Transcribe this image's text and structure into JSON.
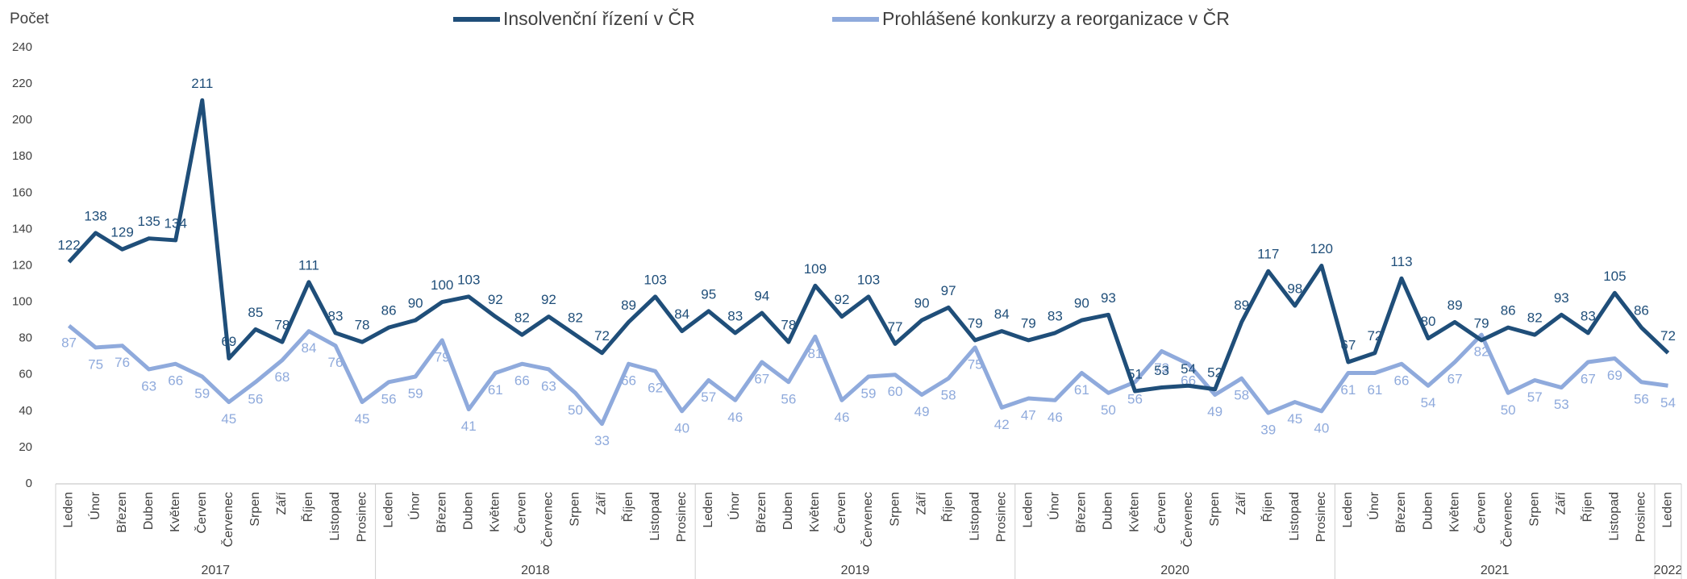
{
  "chart_data": {
    "type": "line",
    "y_label": "Počet",
    "ylim": [
      0,
      240
    ],
    "yticks": [
      0,
      20,
      40,
      60,
      80,
      100,
      120,
      140,
      160,
      180,
      200,
      220,
      240
    ],
    "categories": [
      {
        "month": "Leden",
        "year": "2017"
      },
      {
        "month": "Únor",
        "year": "2017"
      },
      {
        "month": "Březen",
        "year": "2017"
      },
      {
        "month": "Duben",
        "year": "2017"
      },
      {
        "month": "Květen",
        "year": "2017"
      },
      {
        "month": "Červen",
        "year": "2017"
      },
      {
        "month": "Červenec",
        "year": "2017"
      },
      {
        "month": "Srpen",
        "year": "2017"
      },
      {
        "month": "Září",
        "year": "2017"
      },
      {
        "month": "Říjen",
        "year": "2017"
      },
      {
        "month": "Listopad",
        "year": "2017"
      },
      {
        "month": "Prosinec",
        "year": "2017"
      },
      {
        "month": "Leden",
        "year": "2018"
      },
      {
        "month": "Únor",
        "year": "2018"
      },
      {
        "month": "Březen",
        "year": "2018"
      },
      {
        "month": "Duben",
        "year": "2018"
      },
      {
        "month": "Květen",
        "year": "2018"
      },
      {
        "month": "Červen",
        "year": "2018"
      },
      {
        "month": "Červenec",
        "year": "2018"
      },
      {
        "month": "Srpen",
        "year": "2018"
      },
      {
        "month": "Září",
        "year": "2018"
      },
      {
        "month": "Říjen",
        "year": "2018"
      },
      {
        "month": "Listopad",
        "year": "2018"
      },
      {
        "month": "Prosinec",
        "year": "2018"
      },
      {
        "month": "Leden",
        "year": "2019"
      },
      {
        "month": "Únor",
        "year": "2019"
      },
      {
        "month": "Březen",
        "year": "2019"
      },
      {
        "month": "Duben",
        "year": "2019"
      },
      {
        "month": "Květen",
        "year": "2019"
      },
      {
        "month": "Červen",
        "year": "2019"
      },
      {
        "month": "Červenec",
        "year": "2019"
      },
      {
        "month": "Srpen",
        "year": "2019"
      },
      {
        "month": "Září",
        "year": "2019"
      },
      {
        "month": "Říjen",
        "year": "2019"
      },
      {
        "month": "Listopad",
        "year": "2019"
      },
      {
        "month": "Prosinec",
        "year": "2019"
      },
      {
        "month": "Leden",
        "year": "2020"
      },
      {
        "month": "Únor",
        "year": "2020"
      },
      {
        "month": "Březen",
        "year": "2020"
      },
      {
        "month": "Duben",
        "year": "2020"
      },
      {
        "month": "Květen",
        "year": "2020"
      },
      {
        "month": "Červen",
        "year": "2020"
      },
      {
        "month": "Červenec",
        "year": "2020"
      },
      {
        "month": "Srpen",
        "year": "2020"
      },
      {
        "month": "Září",
        "year": "2020"
      },
      {
        "month": "Říjen",
        "year": "2020"
      },
      {
        "month": "Listopad",
        "year": "2020"
      },
      {
        "month": "Prosinec",
        "year": "2020"
      },
      {
        "month": "Leden",
        "year": "2021"
      },
      {
        "month": "Únor",
        "year": "2021"
      },
      {
        "month": "Březen",
        "year": "2021"
      },
      {
        "month": "Duben",
        "year": "2021"
      },
      {
        "month": "Květen",
        "year": "2021"
      },
      {
        "month": "Červen",
        "year": "2021"
      },
      {
        "month": "Červenec",
        "year": "2021"
      },
      {
        "month": "Srpen",
        "year": "2021"
      },
      {
        "month": "Září",
        "year": "2021"
      },
      {
        "month": "Říjen",
        "year": "2021"
      },
      {
        "month": "Listopad",
        "year": "2021"
      },
      {
        "month": "Prosinec",
        "year": "2021"
      },
      {
        "month": "Leden",
        "year": "2022"
      }
    ],
    "series": [
      {
        "name": "Insolvenční řízení v ČR",
        "color": "#1f4e79",
        "label_position": "above",
        "values": [
          122,
          138,
          129,
          135,
          134,
          211,
          69,
          85,
          78,
          111,
          83,
          78,
          86,
          90,
          100,
          103,
          92,
          82,
          92,
          82,
          72,
          89,
          103,
          84,
          95,
          83,
          94,
          78,
          109,
          92,
          103,
          77,
          90,
          97,
          79,
          84,
          79,
          83,
          90,
          93,
          51,
          53,
          54,
          52,
          89,
          117,
          98,
          120,
          67,
          72,
          113,
          80,
          89,
          79,
          86,
          82,
          93,
          83,
          105,
          86,
          72
        ]
      },
      {
        "name": "Prohlášené konkurzy a reorganizace v ČR",
        "color": "#8faadc",
        "label_position": "below",
        "values": [
          87,
          75,
          76,
          63,
          66,
          59,
          45,
          56,
          68,
          84,
          76,
          45,
          56,
          59,
          79,
          41,
          61,
          66,
          63,
          50,
          33,
          66,
          62,
          40,
          57,
          46,
          67,
          56,
          81,
          46,
          59,
          60,
          49,
          58,
          75,
          42,
          47,
          46,
          61,
          50,
          56,
          73,
          66,
          49,
          58,
          39,
          45,
          40,
          61,
          61,
          66,
          54,
          67,
          82,
          50,
          57,
          53,
          67,
          69,
          56,
          54
        ]
      }
    ]
  }
}
